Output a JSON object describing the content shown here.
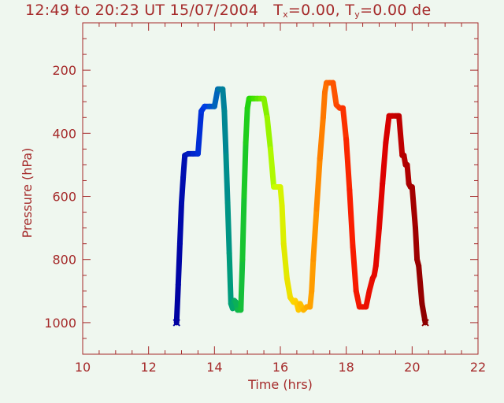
{
  "title": {
    "time_range": "12:49 to 20:23 UT 15/07/2004",
    "tx_label": "T",
    "tx_sub": "x",
    "tx_value": "=0.00,",
    "ty_label": "T",
    "ty_sub": "y",
    "ty_value": "=0.00 de"
  },
  "colors": {
    "axis": "#a52a2a",
    "background": "#eff7ef"
  },
  "chart_data": {
    "type": "line",
    "xlabel": "Time  (hrs)",
    "ylabel": "Pressure  (hPa)",
    "xlim": [
      10,
      22
    ],
    "ylim": [
      1100,
      50
    ],
    "y_inverted": true,
    "xticks": [
      10,
      12,
      14,
      16,
      18,
      20,
      22
    ],
    "yticks": [
      200,
      400,
      600,
      800,
      1000
    ],
    "grid": false,
    "legend": "none",
    "color_by_time": "rainbow (blue to dark red)",
    "series": [
      {
        "marker": "x",
        "x": [
          12.85,
          12.9,
          12.95,
          13.0,
          13.05,
          13.1,
          13.2,
          13.35,
          13.5,
          13.6,
          13.7,
          13.85,
          14.0,
          14.1,
          14.15,
          14.25,
          14.3,
          14.35,
          14.4,
          14.45,
          14.5,
          14.55,
          14.6,
          14.65,
          14.7,
          14.8,
          14.85,
          14.9,
          14.95,
          15.0,
          15.05,
          15.1,
          15.15,
          15.2,
          15.3,
          15.4,
          15.5,
          15.6,
          15.7,
          15.8,
          15.9,
          16.0,
          16.05,
          16.1,
          16.2,
          16.3,
          16.4,
          16.45,
          16.5,
          16.55,
          16.6,
          16.7,
          16.8,
          16.9,
          16.95,
          17.0,
          17.1,
          17.2,
          17.3,
          17.35,
          17.4,
          17.5,
          17.6,
          17.7,
          17.8,
          17.9,
          18.0,
          18.1,
          18.2,
          18.3,
          18.4,
          18.5,
          18.6,
          18.7,
          18.8,
          18.85,
          18.9,
          19.0,
          19.1,
          19.2,
          19.3,
          19.4,
          19.5,
          19.55,
          19.6,
          19.7,
          19.75,
          19.8,
          19.85,
          19.9,
          19.95,
          20.0,
          20.1,
          20.15,
          20.2,
          20.3,
          20.4
        ],
        "y": [
          1000,
          880,
          750,
          620,
          540,
          470,
          465,
          465,
          465,
          330,
          315,
          315,
          315,
          260,
          260,
          260,
          330,
          470,
          620,
          780,
          940,
          955,
          930,
          935,
          960,
          960,
          800,
          600,
          430,
          320,
          290,
          290,
          290,
          290,
          290,
          290,
          290,
          350,
          450,
          570,
          570,
          570,
          630,
          750,
          860,
          920,
          935,
          930,
          940,
          960,
          940,
          960,
          950,
          950,
          900,
          800,
          640,
          480,
          350,
          270,
          240,
          240,
          240,
          310,
          320,
          320,
          420,
          580,
          760,
          900,
          950,
          950,
          950,
          900,
          860,
          850,
          820,
          700,
          560,
          430,
          345,
          345,
          345,
          345,
          345,
          470,
          470,
          500,
          500,
          560,
          570,
          570,
          700,
          800,
          820,
          940,
          1000
        ]
      }
    ]
  }
}
